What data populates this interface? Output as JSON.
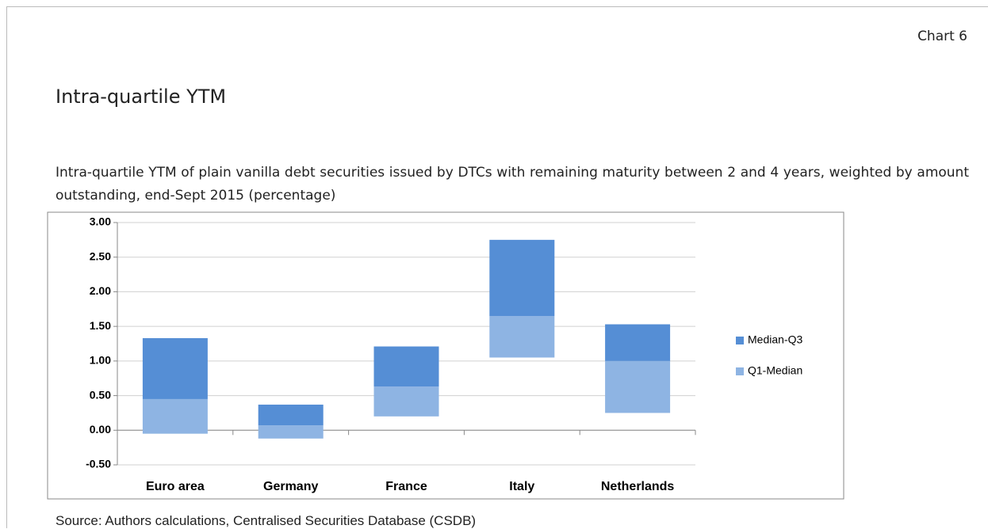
{
  "header": {
    "label": "Chart 6",
    "title": "Intra-quartile YTM",
    "subtitle": "Intra-quartile YTM of plain vanilla debt securities issued by DTCs with remaining maturity between 2 and 4 years, weighted by amount outstanding, end-Sept 2015 (percentage)"
  },
  "chart_data": {
    "type": "floating-bar",
    "categories": [
      "Euro area",
      "Germany",
      "France",
      "Italy",
      "Netherlands"
    ],
    "quartiles": {
      "q1": [
        -0.05,
        -0.12,
        0.2,
        1.05,
        0.25
      ],
      "median": [
        0.45,
        0.07,
        0.63,
        1.65,
        1.0
      ],
      "q3": [
        1.33,
        0.37,
        1.21,
        2.75,
        1.53
      ]
    },
    "legend": [
      {
        "name": "Median-Q3",
        "color": "#558ed5"
      },
      {
        "name": "Q1-Median",
        "color": "#8eb4e3"
      }
    ],
    "ylim": [
      -0.5,
      3.0
    ],
    "yticks": [
      {
        "value": -0.5,
        "label": "-0.50"
      },
      {
        "value": 0,
        "label": "0.00"
      },
      {
        "value": 0.5,
        "label": "0.50"
      },
      {
        "value": 1,
        "label": "1.00"
      },
      {
        "value": 1.5,
        "label": "1.50"
      },
      {
        "value": 2,
        "label": "2.00"
      },
      {
        "value": 2.5,
        "label": "2.50"
      },
      {
        "value": 3,
        "label": "3.00"
      }
    ],
    "grid": true
  },
  "footer": {
    "source": "Source: Authors calculations, Centralised Securities Database (CSDB)"
  }
}
